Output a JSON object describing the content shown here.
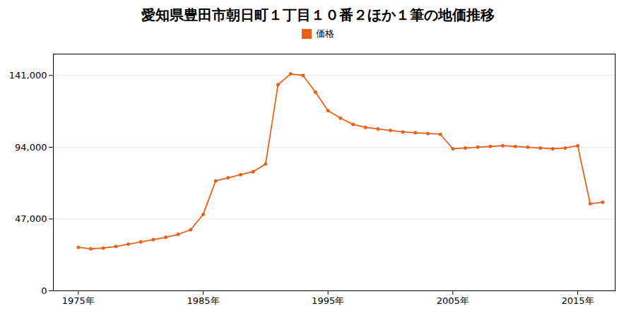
{
  "chart_data": {
    "type": "line",
    "title": "愛知県豊田市朝日町１丁目１０番２ほか１筆の地価推移",
    "x": [
      1975,
      1976,
      1977,
      1978,
      1979,
      1980,
      1981,
      1982,
      1983,
      1984,
      1985,
      1986,
      1987,
      1988,
      1989,
      1990,
      1991,
      1992,
      1993,
      1994,
      1995,
      1996,
      1997,
      1998,
      1999,
      2000,
      2001,
      2002,
      2003,
      2004,
      2005,
      2006,
      2007,
      2008,
      2009,
      2010,
      2011,
      2012,
      2013,
      2014,
      2015,
      2016,
      2017
    ],
    "series": [
      {
        "name": "価格",
        "color": "#e8621a",
        "marker": "circle",
        "values": [
          28500,
          27500,
          28000,
          29000,
          30500,
          32000,
          33500,
          35000,
          37000,
          40000,
          50000,
          72000,
          74000,
          76000,
          78000,
          83000,
          135000,
          142000,
          141000,
          130000,
          118000,
          113000,
          109000,
          107000,
          106000,
          105000,
          104000,
          103500,
          103000,
          102500,
          93000,
          93500,
          94000,
          94500,
          95000,
          94500,
          94000,
          93500,
          93000,
          93500,
          95000,
          57000,
          58000
        ]
      }
    ],
    "xlim": [
      1973,
      2018
    ],
    "xticks": [
      {
        "value": 1975,
        "label": "1975年"
      },
      {
        "value": 1985,
        "label": "1985年"
      },
      {
        "value": 1995,
        "label": "1995年"
      },
      {
        "value": 2005,
        "label": "2005年"
      },
      {
        "value": 2015,
        "label": "2015年"
      }
    ],
    "ylim": [
      0,
      155000
    ],
    "yticks": [
      0,
      {
        "value": 47000,
        "label": "47,000"
      },
      {
        "value": 94000,
        "label": "94,000"
      },
      {
        "value": 141000,
        "label": "141,000"
      }
    ],
    "grid": "y",
    "legend": "top"
  }
}
